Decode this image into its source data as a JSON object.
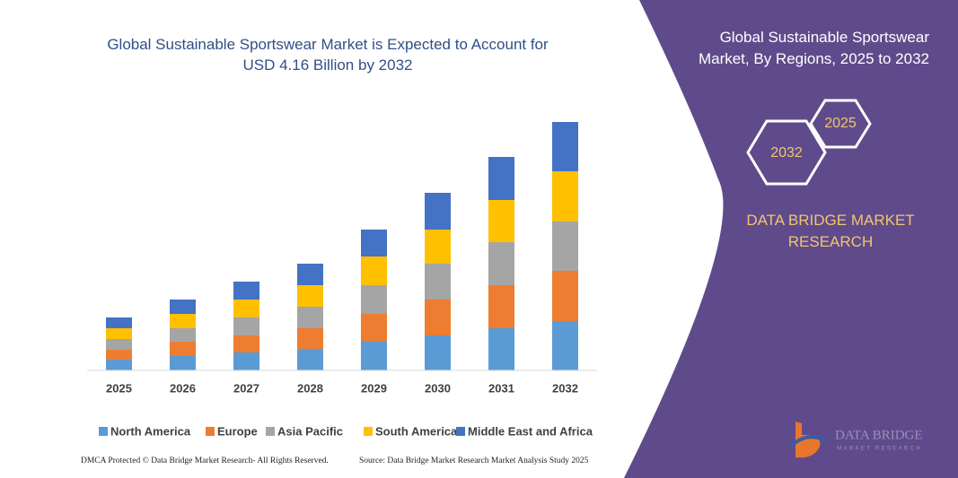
{
  "chart_data": {
    "type": "stacked-bar",
    "title": "Global Sustainable Sportswear Market is Expected to Account for USD 4.16 Billion by 2032",
    "categories": [
      "2025",
      "2026",
      "2027",
      "2028",
      "2029",
      "2030",
      "2031",
      "2032"
    ],
    "series": [
      {
        "name": "North America",
        "color": "#5b9bd5",
        "values": [
          12,
          16,
          20,
          24,
          32,
          39,
          47,
          55
        ]
      },
      {
        "name": "Europe",
        "color": "#ed7d31",
        "values": [
          11,
          16,
          19,
          23,
          31,
          40,
          48,
          56
        ]
      },
      {
        "name": "Asia Pacific",
        "color": "#a5a5a5",
        "values": [
          12,
          15,
          20,
          24,
          32,
          40,
          48,
          55
        ]
      },
      {
        "name": "South America",
        "color": "#ffc000",
        "values": [
          12,
          16,
          20,
          24,
          32,
          38,
          47,
          56
        ]
      },
      {
        "name": "Middle East and Africa",
        "color": "#4472c4",
        "values": [
          12,
          16,
          20,
          24,
          30,
          41,
          48,
          55
        ]
      }
    ],
    "ylim": [
      0,
      280
    ]
  },
  "panel": {
    "title": "Global Sustainable Sportswear Market, By Regions, 2025 to 2032",
    "hex_small": "2025",
    "hex_large": "2032",
    "brand": "DATA BRIDGE MARKET RESEARCH"
  },
  "logo": {
    "name": "DATA BRIDGE",
    "tagline": "MARKET RESEARCH"
  },
  "footer": {
    "left": "DMCA Protected © Data Bridge Market Research- All Rights Reserved.",
    "right": "Source: Data Bridge Market Research Market Analysis Study 2025"
  }
}
